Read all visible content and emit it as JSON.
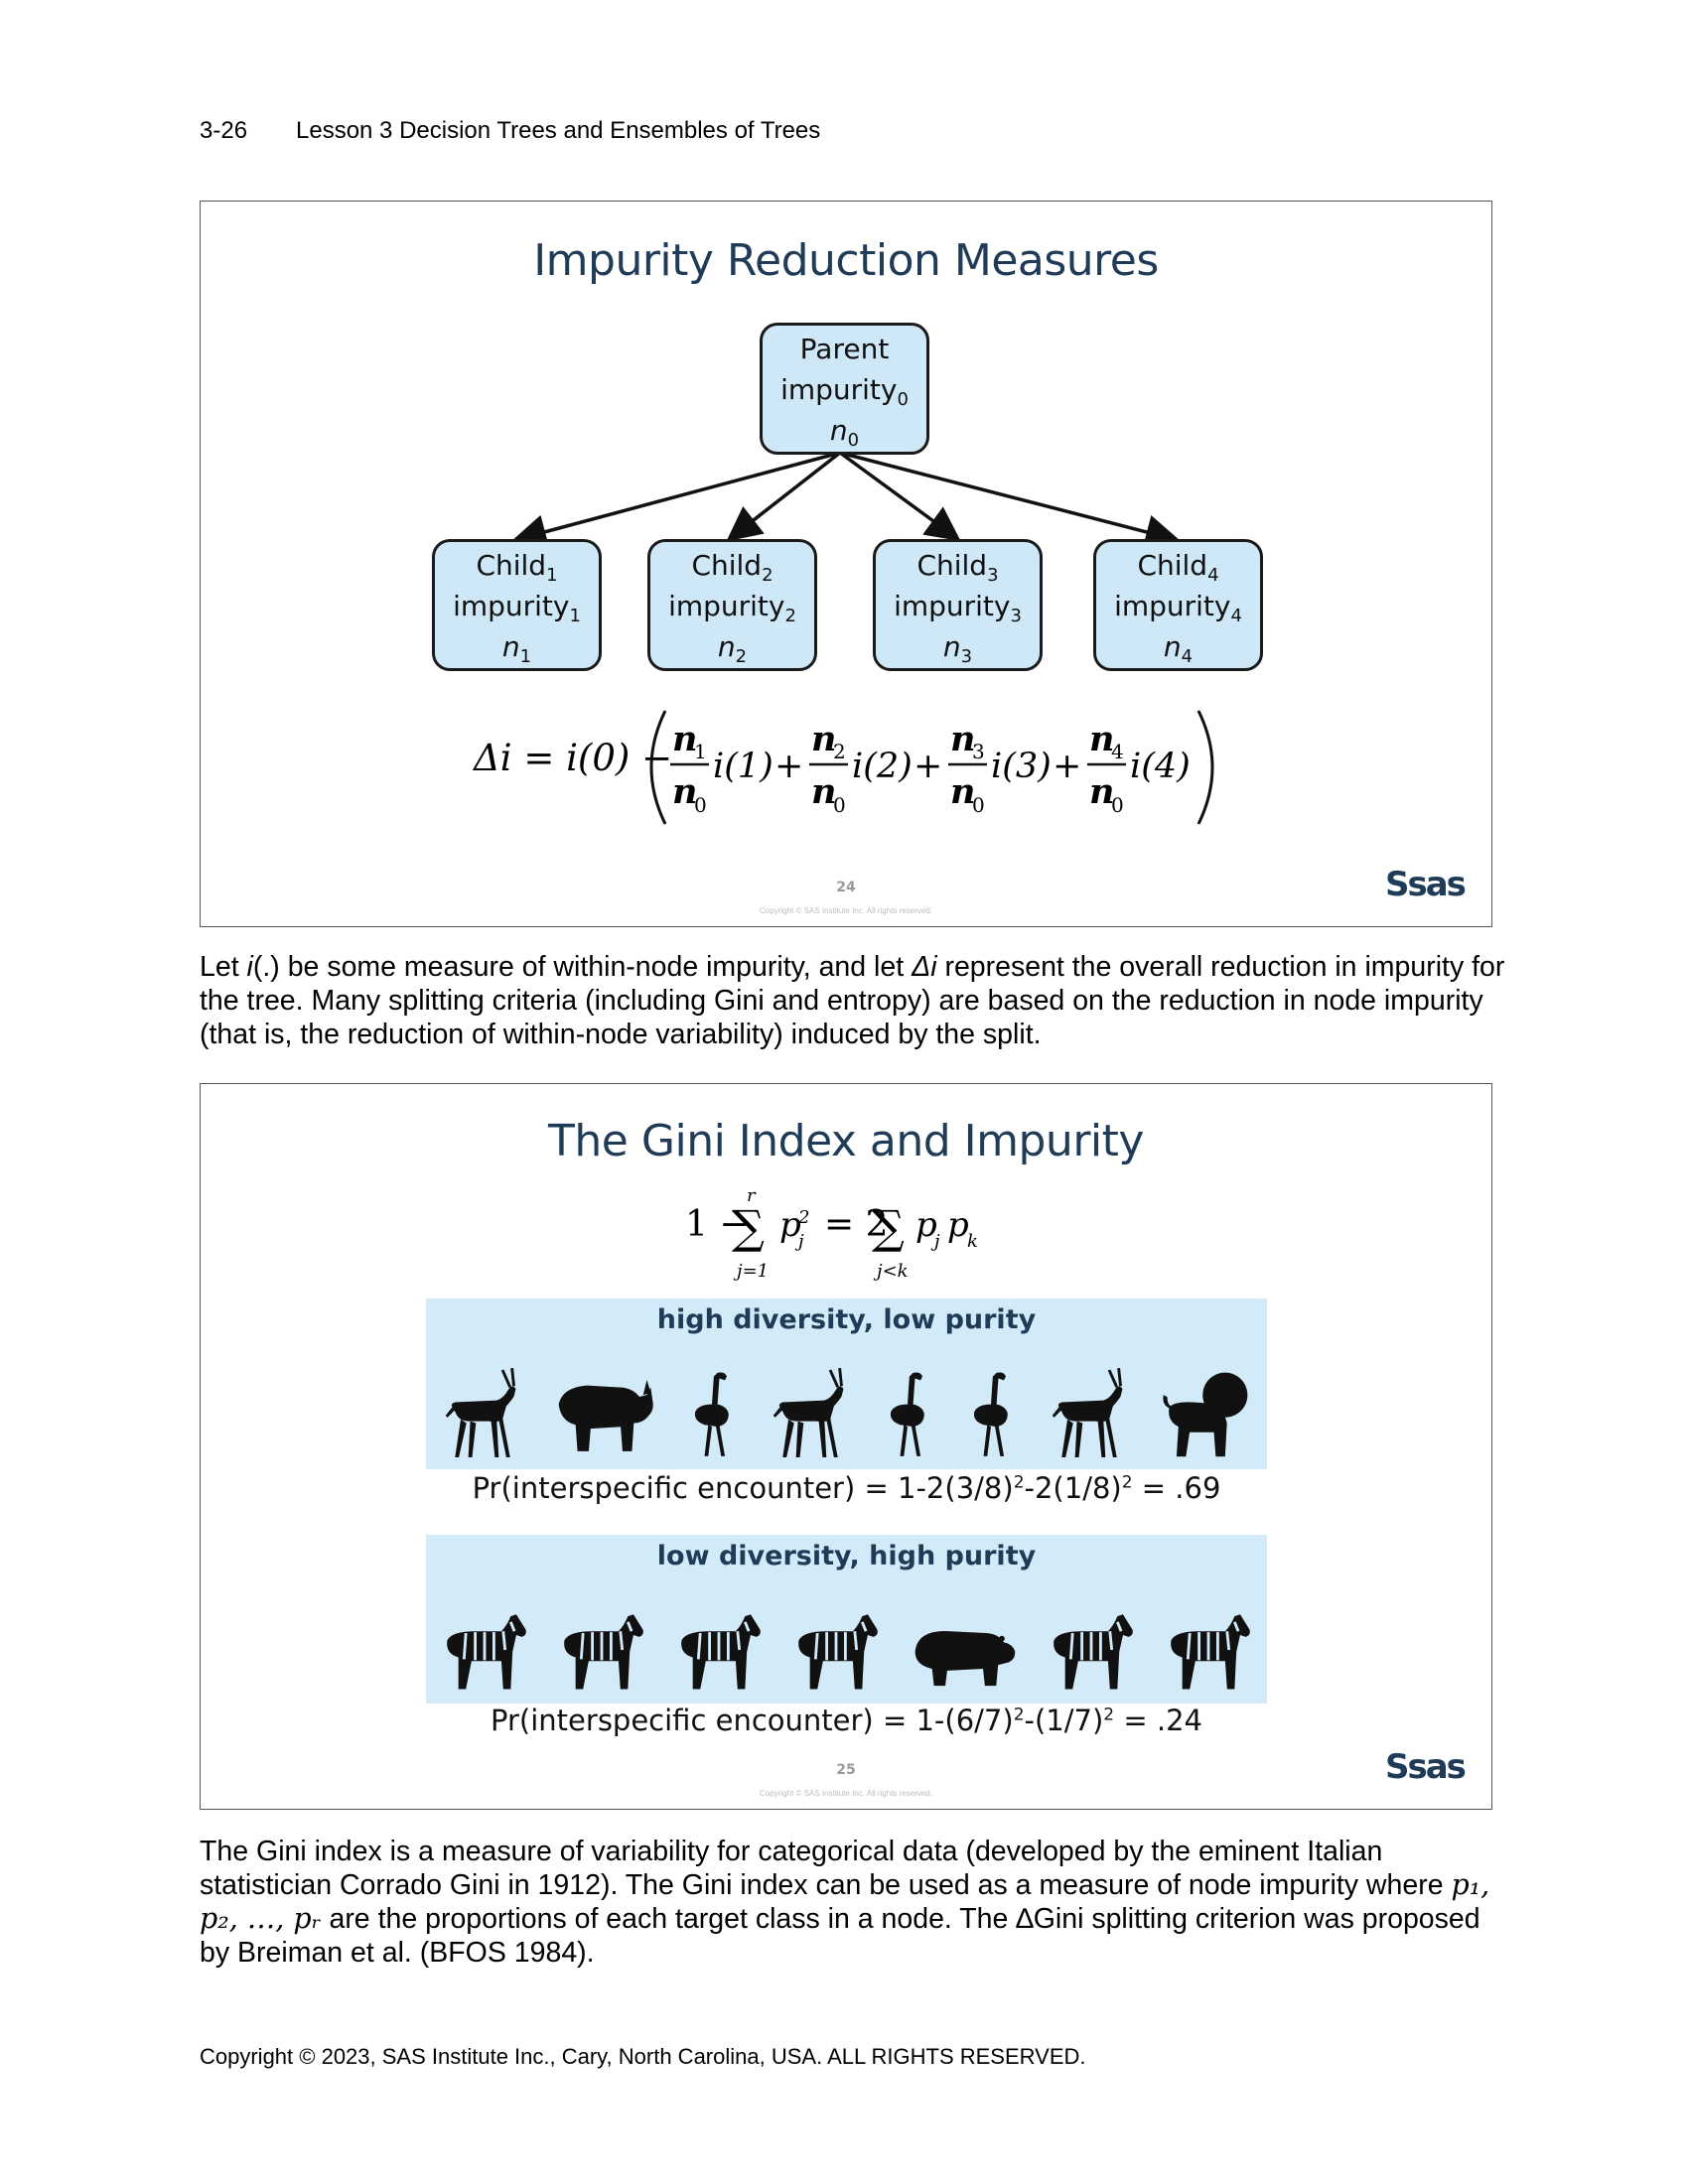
{
  "header": {
    "page_number": "3-26",
    "lesson_title": "Lesson 3  Decision Trees and Ensembles of Trees"
  },
  "slide1": {
    "title": "Impurity Reduction Measures",
    "parent": {
      "line1": "Parent",
      "line2": "impurity",
      "sub2": "0",
      "line3": "n",
      "sub3": "0"
    },
    "children": [
      {
        "line1": "Child",
        "sub1": "1",
        "line2": "impurity",
        "sub2": "1",
        "line3": "n",
        "sub3": "1"
      },
      {
        "line1": "Child",
        "sub1": "2",
        "line2": "impurity",
        "sub2": "2",
        "line3": "n",
        "sub3": "2"
      },
      {
        "line1": "Child",
        "sub1": "3",
        "line2": "impurity",
        "sub2": "3",
        "line3": "n",
        "sub3": "3"
      },
      {
        "line1": "Child",
        "sub1": "4",
        "line2": "impurity",
        "sub2": "4",
        "line3": "n",
        "sub3": "4"
      }
    ],
    "formula": {
      "lhs": "Δi = i(0) −",
      "terms": [
        {
          "num": "n",
          "num_sub": "1",
          "den": "n",
          "den_sub": "0",
          "fn": "i(1)"
        },
        {
          "num": "n",
          "num_sub": "2",
          "den": "n",
          "den_sub": "0",
          "fn": "i(2)"
        },
        {
          "num": "n",
          "num_sub": "3",
          "den": "n",
          "den_sub": "0",
          "fn": "i(3)"
        },
        {
          "num": "n",
          "num_sub": "4",
          "den": "n",
          "den_sub": "0",
          "fn": "i(4)"
        }
      ],
      "plus": "+"
    },
    "slide_number": "24",
    "copyright": "Copyright © SAS Institute Inc. All rights reserved.",
    "logo": "Ssas"
  },
  "paragraph1": {
    "t1": "Let ",
    "i1": "i",
    "t2": "(.) be some measure of within-node impurity, and let ",
    "i2": "Δi",
    "t3": " represent the overall reduction in impurity for the tree. Many splitting criteria (including Gini and entropy) are based on the reduction in node impurity (that is, the reduction of within-node variability) induced by the split."
  },
  "slide2": {
    "title": "The Gini Index and Impurity",
    "formula": {
      "lhs": "1 −",
      "sum_top": "r",
      "sum_bottom": "j=1",
      "term1": "p",
      "term1_sub": "j",
      "term1_sup": "2",
      "eq": "= 2",
      "sum2_bottom": "j<k",
      "term2": "p",
      "term2_sub1": "j",
      "term2b": "p",
      "term2_sub2": "k"
    },
    "band1": {
      "label": "high diversity, low purity",
      "animals": [
        "antelope",
        "rhino",
        "ostrich",
        "antelope",
        "ostrich",
        "ostrich",
        "antelope",
        "lion"
      ],
      "caption_parts": [
        "Pr(interspecific encounter) = 1-2(3/8)",
        "2",
        "-2(1/8)",
        "2",
        " = .69"
      ]
    },
    "band2": {
      "label": "low diversity, high purity",
      "animals": [
        "zebra",
        "zebra",
        "zebra",
        "zebra",
        "hippo",
        "zebra",
        "zebra"
      ],
      "caption_parts": [
        "Pr(interspecific encounter) = 1-(6/7)",
        "2",
        "-(1/7)",
        "2",
        " = .24"
      ]
    },
    "slide_number": "25",
    "copyright": "Copyright © SAS Institute Inc. All rights reserved.",
    "logo": "Ssas"
  },
  "paragraph2": {
    "t1": "The Gini index is a measure of variability for categorical data (developed by the eminent Italian statistician Corrado Gini in 1912). The Gini index can be used as a measure of node impurity where ",
    "vars": "p₁, p₂, …, pᵣ",
    "t2": " are the proportions of each target class in a node. The ",
    "delta": "∆",
    "t3": "Gini splitting criterion was proposed by Breiman et al. (BFOS 1984)."
  },
  "footer": {
    "copyright": "Copyright © 2023, SAS Institute Inc., Cary, North Carolina, USA. ALL RIGHTS RESERVED."
  }
}
